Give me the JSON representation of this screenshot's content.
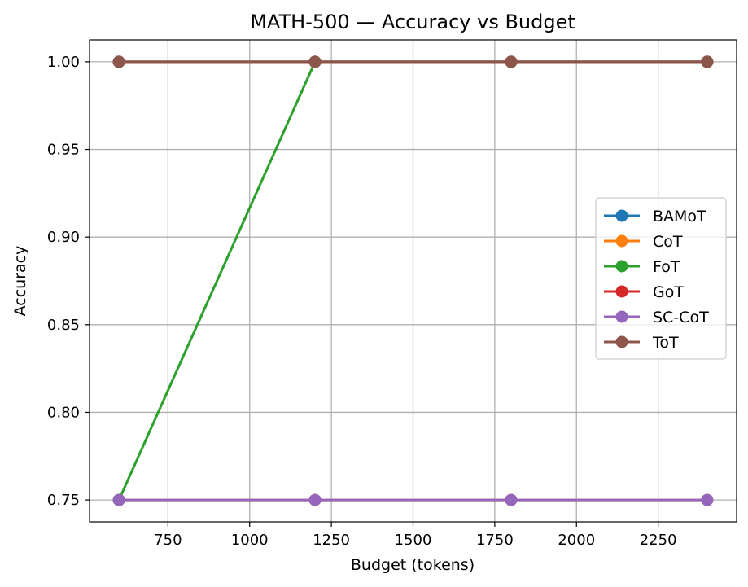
{
  "chart_data": {
    "type": "line",
    "title": "MATH-500 — Accuracy vs Budget",
    "xlabel": "Budget (tokens)",
    "ylabel": "Accuracy",
    "x": [
      600,
      1200,
      1800,
      2400
    ],
    "xlim": [
      510,
      2490
    ],
    "ylim": [
      0.7375,
      1.0125
    ],
    "xticks": [
      750,
      1000,
      1250,
      1500,
      1750,
      2000,
      2250
    ],
    "xtick_labels": [
      "750",
      "1000",
      "1250",
      "1500",
      "1750",
      "2000",
      "2250"
    ],
    "yticks": [
      0.75,
      0.8,
      0.85,
      0.9,
      0.95,
      1.0
    ],
    "ytick_labels": [
      "0.75",
      "0.80",
      "0.85",
      "0.90",
      "0.95",
      "1.00"
    ],
    "grid": true,
    "legend_position": "center-right",
    "series": [
      {
        "name": "BAMoT",
        "color": "#1f77b4",
        "values": [
          1.0,
          1.0,
          1.0,
          1.0
        ]
      },
      {
        "name": "CoT",
        "color": "#ff7f0e",
        "values": [
          0.75,
          0.75,
          0.75,
          0.75
        ]
      },
      {
        "name": "FoT",
        "color": "#2ca02c",
        "values": [
          0.75,
          1.0,
          1.0,
          1.0
        ]
      },
      {
        "name": "GoT",
        "color": "#d62728",
        "values": [
          1.0,
          1.0,
          1.0,
          1.0
        ]
      },
      {
        "name": "SC-CoT",
        "color": "#9467bd",
        "values": [
          0.75,
          0.75,
          0.75,
          0.75
        ]
      },
      {
        "name": "ToT",
        "color": "#8c564b",
        "values": [
          1.0,
          1.0,
          1.0,
          1.0
        ]
      }
    ]
  }
}
